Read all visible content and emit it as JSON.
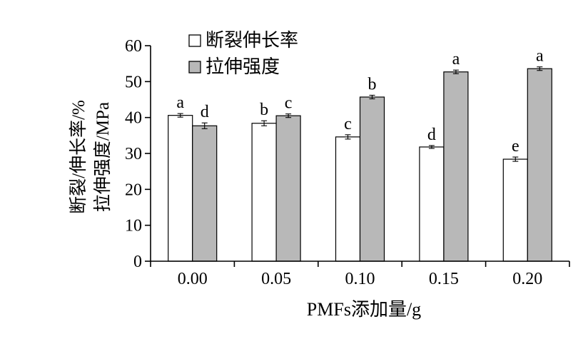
{
  "chart_data": {
    "type": "bar",
    "categories": [
      "0.00",
      "0.05",
      "0.10",
      "0.15",
      "0.20"
    ],
    "series": [
      {
        "name": "断裂伸长率",
        "fill": "#ffffff",
        "values": [
          40.6,
          38.4,
          34.6,
          31.8,
          28.4
        ],
        "errors": [
          0.5,
          0.7,
          0.6,
          0.4,
          0.6
        ],
        "letters": [
          "a",
          "b",
          "c",
          "d",
          "e"
        ]
      },
      {
        "name": "拉伸强度",
        "fill": "#b8b8b8",
        "values": [
          37.7,
          40.5,
          45.7,
          52.7,
          53.6
        ],
        "errors": [
          0.8,
          0.5,
          0.5,
          0.5,
          0.5
        ],
        "letters": [
          "d",
          "c",
          "b",
          "a",
          "a"
        ]
      }
    ],
    "xlabel": "PMFs添加量/g",
    "ylabel_lines": [
      "断裂/伸长率/%",
      "拉伸强度/MPa"
    ],
    "ylim": [
      0,
      60
    ],
    "yticks": [
      0,
      10,
      20,
      30,
      40,
      50,
      60
    ],
    "grid": false,
    "legend_position": "top-left"
  }
}
